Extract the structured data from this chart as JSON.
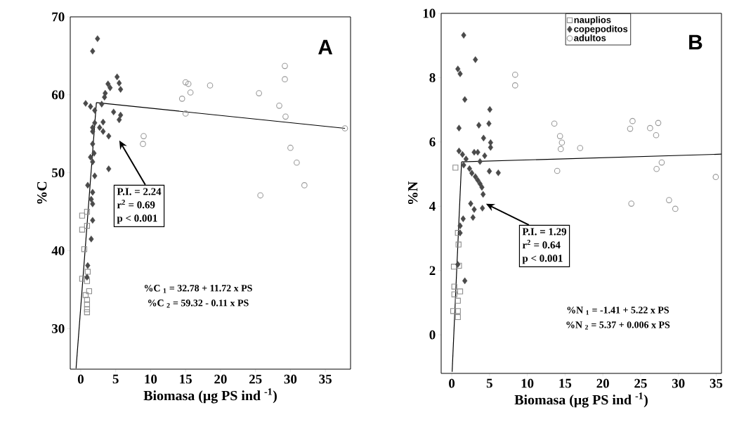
{
  "chart_data": [
    {
      "type": "scatter",
      "title": "A",
      "xlabel": "Biomasa (μg PS ind $^{-1}$)",
      "ylabel": "%C",
      "xlim": [
        -1.5,
        38.6
      ],
      "ylim": [
        24.8,
        70
      ],
      "xticks": [
        0,
        5,
        10,
        15,
        20,
        25,
        30,
        35
      ],
      "yticks": [
        30,
        40,
        50,
        60,
        70
      ],
      "annotations": [
        "P.I. = 2.24",
        "r$^{2}$ = 0.69",
        "p < 0.001",
        "%C $_{1}$ = 32.78 + 11.72 x PS",
        "%C $_{2}$ = 59.32 - 0.11 x PS"
      ],
      "series": [
        {
          "color": "#8c8c8c",
          "marker": "square",
          "x": [
            0.2,
            0.9,
            0.2,
            0.9,
            0.5,
            1.0,
            0.2,
            0.9,
            1.2,
            0.7,
            0.9,
            0.9,
            0.9,
            0.9
          ],
          "values": [
            44.5,
            45.0,
            42.7,
            43.2,
            40.2,
            37.3,
            36.4,
            36.1,
            34.8,
            34.3,
            33.7,
            33.1,
            32.5,
            32.1
          ]
        },
        {
          "color": "#4a4a4a",
          "marker": "diamond",
          "x": [
            2.4,
            1.7,
            5.2,
            5.5,
            3.9,
            4.2,
            5.7,
            3.5,
            3.4,
            0.7,
            1.4,
            2.0,
            3.0,
            4.7,
            5.7,
            5.5,
            2.0,
            3.2,
            1.7,
            2.7,
            3.2,
            4.0,
            1.7,
            1.7,
            1.9,
            1.4,
            1.7,
            4.0,
            2.0,
            1.0,
            1.7,
            1.5,
            1.7,
            1.7,
            1.5,
            1.0,
            0.9
          ],
          "values": [
            67.2,
            65.6,
            62.3,
            61.5,
            61.4,
            60.9,
            60.7,
            60.2,
            59.7,
            58.9,
            58.5,
            58.0,
            58.8,
            57.8,
            57.4,
            56.8,
            56.4,
            56.5,
            55.8,
            55.8,
            55.3,
            54.7,
            55.3,
            53.7,
            52.5,
            52.0,
            51.4,
            50.5,
            49.6,
            48.4,
            47.5,
            46.6,
            46.0,
            43.9,
            41.5,
            38.1,
            36.6
          ]
        },
        {
          "color": "#9a9a9a",
          "marker": "circle",
          "x": [
            9.0,
            8.9,
            15.0,
            15.4,
            15.7,
            14.5,
            15.0,
            29.2,
            29.2,
            18.5,
            25.5,
            28.4,
            29.3,
            37.8,
            30.0,
            30.9,
            32.0,
            25.7
          ],
          "values": [
            54.7,
            53.7,
            61.6,
            61.4,
            60.3,
            59.5,
            57.6,
            63.7,
            62.0,
            61.2,
            60.2,
            58.6,
            57.2,
            55.7,
            53.2,
            51.3,
            48.4,
            47.1
          ]
        },
        {
          "type": "line",
          "color": "#000000",
          "marker": "none",
          "x": [
            -0.67,
            2.24
          ],
          "values": [
            24.9,
            59.0
          ]
        },
        {
          "type": "line",
          "color": "#000000",
          "marker": "none",
          "x": [
            2.24,
            37.8
          ],
          "values": [
            59.0,
            55.7
          ]
        }
      ]
    },
    {
      "type": "scatter",
      "title": "B",
      "xlabel": "Biomasa (μg PS ind $^{-1}$)",
      "ylabel": "%N",
      "xlim": [
        -1.4,
        35.7
      ],
      "ylim": [
        -1.2,
        10
      ],
      "xticks": [
        0,
        5,
        10,
        15,
        20,
        25,
        30,
        35
      ],
      "yticks": [
        0,
        2,
        4,
        6,
        8,
        10
      ],
      "legend": "top",
      "annotations": [
        "P.I. = 1.29",
        "r$^{2}$ = 0.64",
        "p < 0.001",
        "%N $_{1}$ = -1.41 + 5.22 x PS",
        "%N $_{2}$ = 5.37 + 0.006 x PS"
      ],
      "series": [
        {
          "name": "nauplios",
          "color": "#8c8c8c",
          "marker": "square",
          "x": [
            0.49,
            0.81,
            0.9,
            0.96,
            0.28,
            0.34,
            1.11,
            0.34,
            0.81,
            0.19,
            0.81,
            0.81
          ],
          "values": [
            5.2,
            3.17,
            2.81,
            2.15,
            2.12,
            1.5,
            1.35,
            1.26,
            1.06,
            0.74,
            0.74,
            0.55
          ]
        },
        {
          "name": "copepoditos",
          "color": "#4a4a4a",
          "marker": "diamond",
          "x": [
            1.58,
            3.13,
            0.81,
            1.11,
            1.73,
            5.04,
            0.96,
            3.59,
            4.92,
            4.21,
            5.14,
            5.14,
            0.96,
            1.42,
            2.97,
            3.44,
            4.36,
            1.89,
            3.74,
            1.58,
            2.35,
            2.66,
            3.13,
            3.44,
            4.98,
            6.16,
            3.74,
            3.99,
            4.15,
            2.51,
            2.97,
            4.06,
            2.81,
            1.51,
            1.11,
            1.11,
            0.81,
            1.73
          ],
          "values": [
            9.32,
            8.56,
            8.27,
            8.12,
            7.32,
            7.01,
            6.43,
            6.52,
            6.57,
            6.12,
            5.98,
            5.83,
            5.72,
            5.61,
            5.68,
            5.68,
            5.57,
            5.47,
            5.39,
            5.28,
            5.17,
            5.03,
            4.92,
            4.81,
            5.09,
            5.04,
            4.7,
            4.59,
            4.37,
            4.08,
            3.9,
            3.94,
            3.65,
            3.61,
            3.39,
            3.17,
            2.19,
            1.68
          ]
        },
        {
          "name": "adultos",
          "color": "#9a9a9a",
          "marker": "circle",
          "x": [
            8.39,
            8.39,
            13.58,
            14.33,
            14.58,
            14.43,
            13.96,
            16.99,
            23.93,
            23.61,
            27.33,
            26.25,
            27.05,
            27.79,
            27.11,
            34.94,
            23.77,
            28.76,
            29.59
          ],
          "values": [
            8.09,
            7.76,
            6.57,
            6.18,
            5.98,
            5.78,
            5.1,
            5.81,
            6.65,
            6.41,
            6.59,
            6.43,
            6.21,
            5.36,
            5.16,
            4.91,
            4.08,
            4.19,
            3.92
          ]
        },
        {
          "type": "line",
          "color": "#000000",
          "marker": "none",
          "x": [
            0.05,
            1.3
          ],
          "values": [
            -1.15,
            5.38
          ]
        },
        {
          "type": "line",
          "color": "#000000",
          "marker": "none",
          "x": [
            1.3,
            35.7
          ],
          "values": [
            5.38,
            5.62
          ]
        }
      ]
    }
  ]
}
